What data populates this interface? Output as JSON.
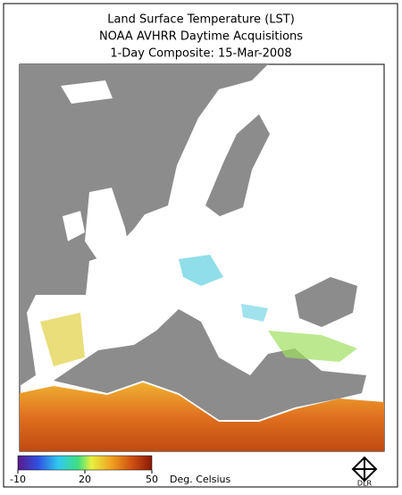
{
  "header": {
    "title": [
      "Land Surface Temperature (LST)",
      "NOAA AVHRR Daytime Acquisitions",
      "1-Day Composite: 15-Mar-2008"
    ]
  },
  "colorbar": {
    "range": [
      -10,
      50
    ],
    "ticks": [
      -10,
      20,
      50
    ],
    "unit_label": "Deg. Celsius"
  },
  "logo": "DLR"
}
